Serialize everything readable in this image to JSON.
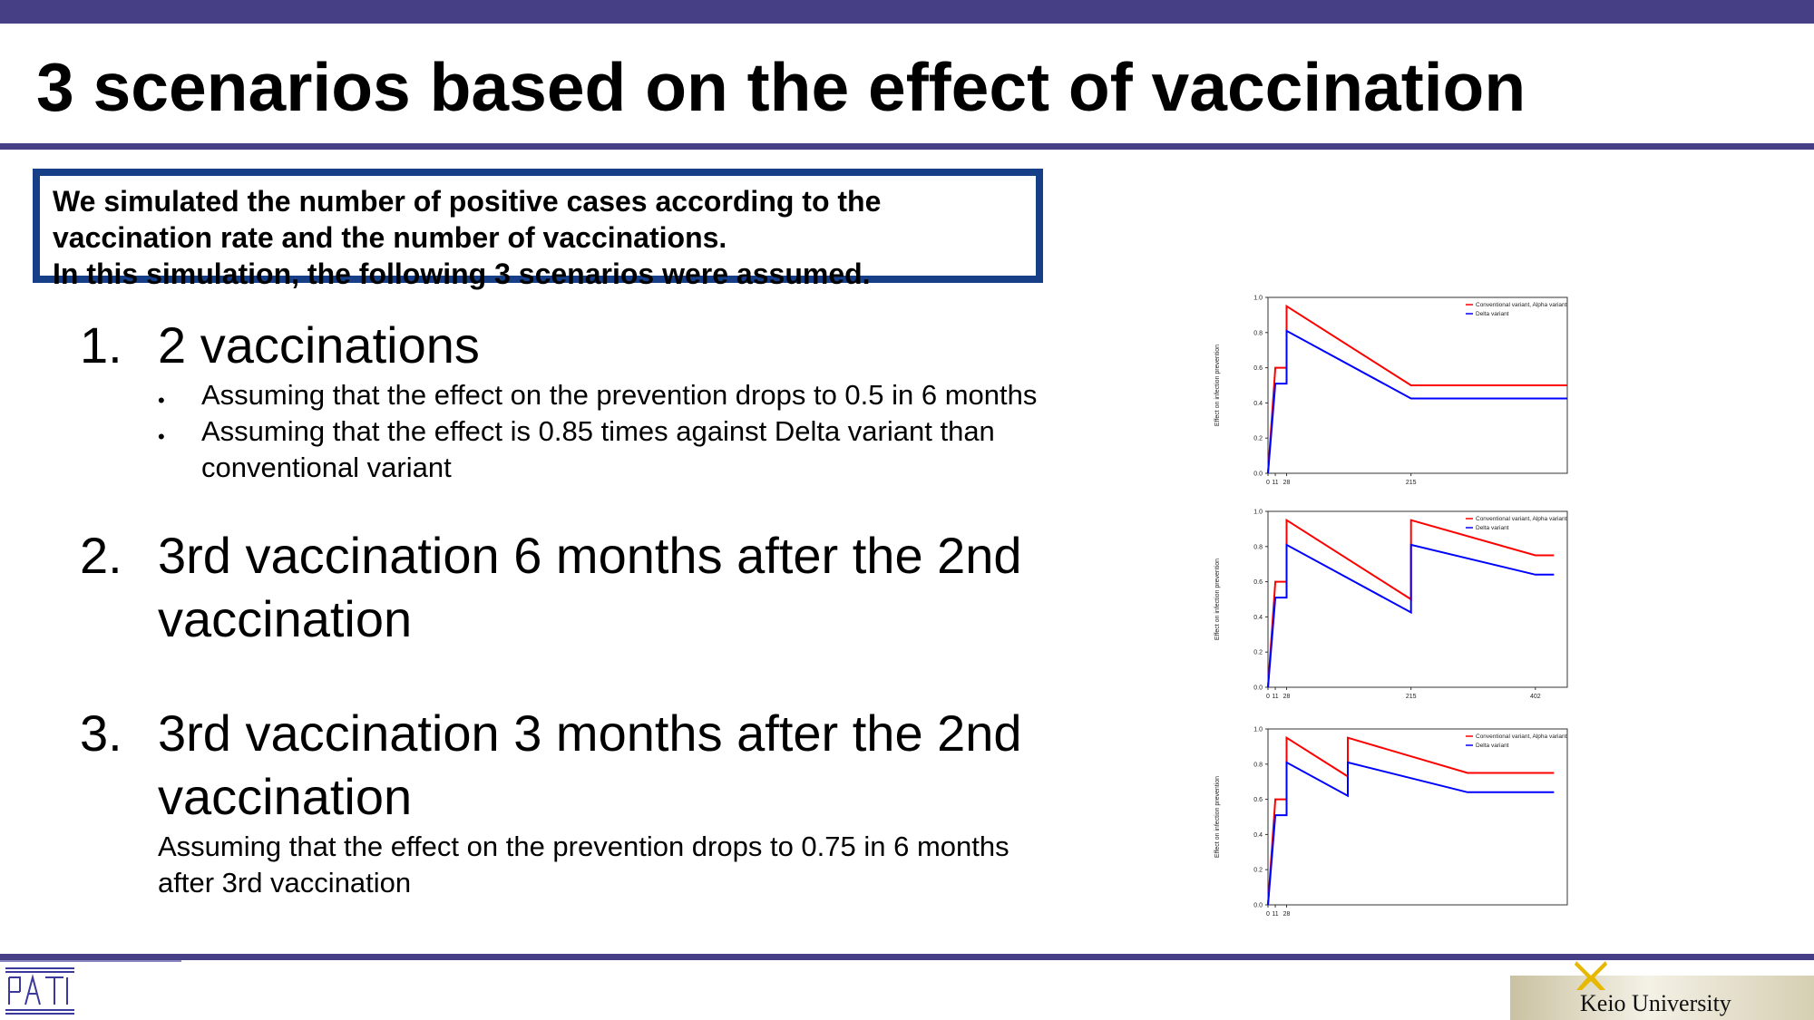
{
  "slide": {
    "title": "3 scenarios based on the effect of vaccination",
    "intro_lines": [
      "We simulated the number of positive cases according to the",
      "vaccination rate and the number of vaccinations.",
      "In this simulation, the following 3 scenarios were assumed."
    ],
    "scenarios": [
      {
        "number": "1.",
        "title": "2 vaccinations",
        "bullets": [
          "Assuming that the effect on the prevention drops to 0.5 in 6 months",
          "Assuming that the effect is 0.85 times against Delta variant than",
          "conventional variant"
        ]
      },
      {
        "number": "2.",
        "title": "3rd vaccination 6 months after the 2nd vaccination"
      },
      {
        "number": "3.",
        "title": "3rd vaccination 3 months after the 2nd vaccination",
        "note_lines": [
          "Assuming that the effect on the prevention drops to 0.75 in 6 months",
          "after 3rd vaccination"
        ]
      }
    ],
    "bullet_glyph": "•",
    "footer": {
      "university": "Keio University"
    },
    "colors": {
      "band": "#473f86",
      "box_border": "#173f87",
      "conventional": "#ff0000",
      "delta": "#0000ff"
    }
  },
  "chart_data": [
    {
      "type": "line",
      "title": "",
      "xlabel": "",
      "ylabel": "Effect on infection prevention",
      "ylim": [
        0,
        1.0
      ],
      "yticks": [
        "1.0",
        "0.8",
        "0.6",
        "0.4",
        "0.2",
        "0.0"
      ],
      "xticks": [
        {
          "x": 0,
          "label": "0"
        },
        {
          "x": 11,
          "label": "11"
        },
        {
          "x": 28,
          "label": "28"
        },
        {
          "x": 215,
          "label": "215"
        }
      ],
      "xlim": [
        0,
        450
      ],
      "legend": [
        "Conventional variant, Alpha variant",
        "Delta variant"
      ],
      "series": [
        {
          "name": "Conventional variant, Alpha variant",
          "color": "#ff0000",
          "x": [
            0,
            11,
            11,
            28,
            28,
            215,
            450
          ],
          "y": [
            0,
            0.6,
            0.6,
            0.6,
            0.95,
            0.5,
            0.5
          ]
        },
        {
          "name": "Delta variant",
          "color": "#0000ff",
          "x": [
            0,
            11,
            11,
            28,
            28,
            215,
            450
          ],
          "y": [
            0,
            0.51,
            0.51,
            0.51,
            0.81,
            0.425,
            0.425
          ]
        }
      ]
    },
    {
      "type": "line",
      "title": "",
      "xlabel": "",
      "ylabel": "Effect on infection prevention",
      "ylim": [
        0,
        1.0
      ],
      "yticks": [
        "1.0",
        "0.8",
        "0.6",
        "0.4",
        "0.2",
        "0.0"
      ],
      "xticks": [
        {
          "x": 0,
          "label": "0"
        },
        {
          "x": 11,
          "label": "11"
        },
        {
          "x": 28,
          "label": "28"
        },
        {
          "x": 215,
          "label": "215"
        },
        {
          "x": 402,
          "label": "402"
        }
      ],
      "xlim": [
        0,
        450
      ],
      "legend": [
        "Conventional variant, Alpha variant",
        "Delta variant"
      ],
      "series": [
        {
          "name": "Conventional variant, Alpha variant",
          "color": "#ff0000",
          "x": [
            0,
            11,
            11,
            28,
            28,
            215,
            215,
            402,
            430
          ],
          "y": [
            0,
            0.6,
            0.6,
            0.6,
            0.95,
            0.5,
            0.95,
            0.75,
            0.75
          ]
        },
        {
          "name": "Delta variant",
          "color": "#0000ff",
          "x": [
            0,
            11,
            11,
            28,
            28,
            215,
            215,
            402,
            430
          ],
          "y": [
            0,
            0.51,
            0.51,
            0.51,
            0.81,
            0.425,
            0.81,
            0.64,
            0.64
          ]
        }
      ]
    },
    {
      "type": "line",
      "title": "",
      "xlabel": "",
      "ylabel": "Effect on infection prevention",
      "ylim": [
        0,
        1.0
      ],
      "yticks": [
        "1.0",
        "0.8",
        "0.6",
        "0.4",
        "0.2",
        "0.0"
      ],
      "xticks": [
        {
          "x": 0,
          "label": "0"
        },
        {
          "x": 11,
          "label": "11"
        },
        {
          "x": 28,
          "label": "28"
        }
      ],
      "xlim": [
        0,
        450
      ],
      "legend": [
        "Conventional variant, Alpha variant",
        "Delta variant"
      ],
      "series": [
        {
          "name": "Conventional variant, Alpha variant",
          "color": "#ff0000",
          "x": [
            0,
            11,
            11,
            28,
            28,
            120,
            120,
            300,
            430
          ],
          "y": [
            0,
            0.6,
            0.6,
            0.6,
            0.95,
            0.73,
            0.95,
            0.75,
            0.75
          ]
        },
        {
          "name": "Delta variant",
          "color": "#0000ff",
          "x": [
            0,
            11,
            11,
            28,
            28,
            120,
            120,
            300,
            430
          ],
          "y": [
            0,
            0.51,
            0.51,
            0.51,
            0.81,
            0.62,
            0.81,
            0.64,
            0.64
          ]
        }
      ]
    }
  ]
}
